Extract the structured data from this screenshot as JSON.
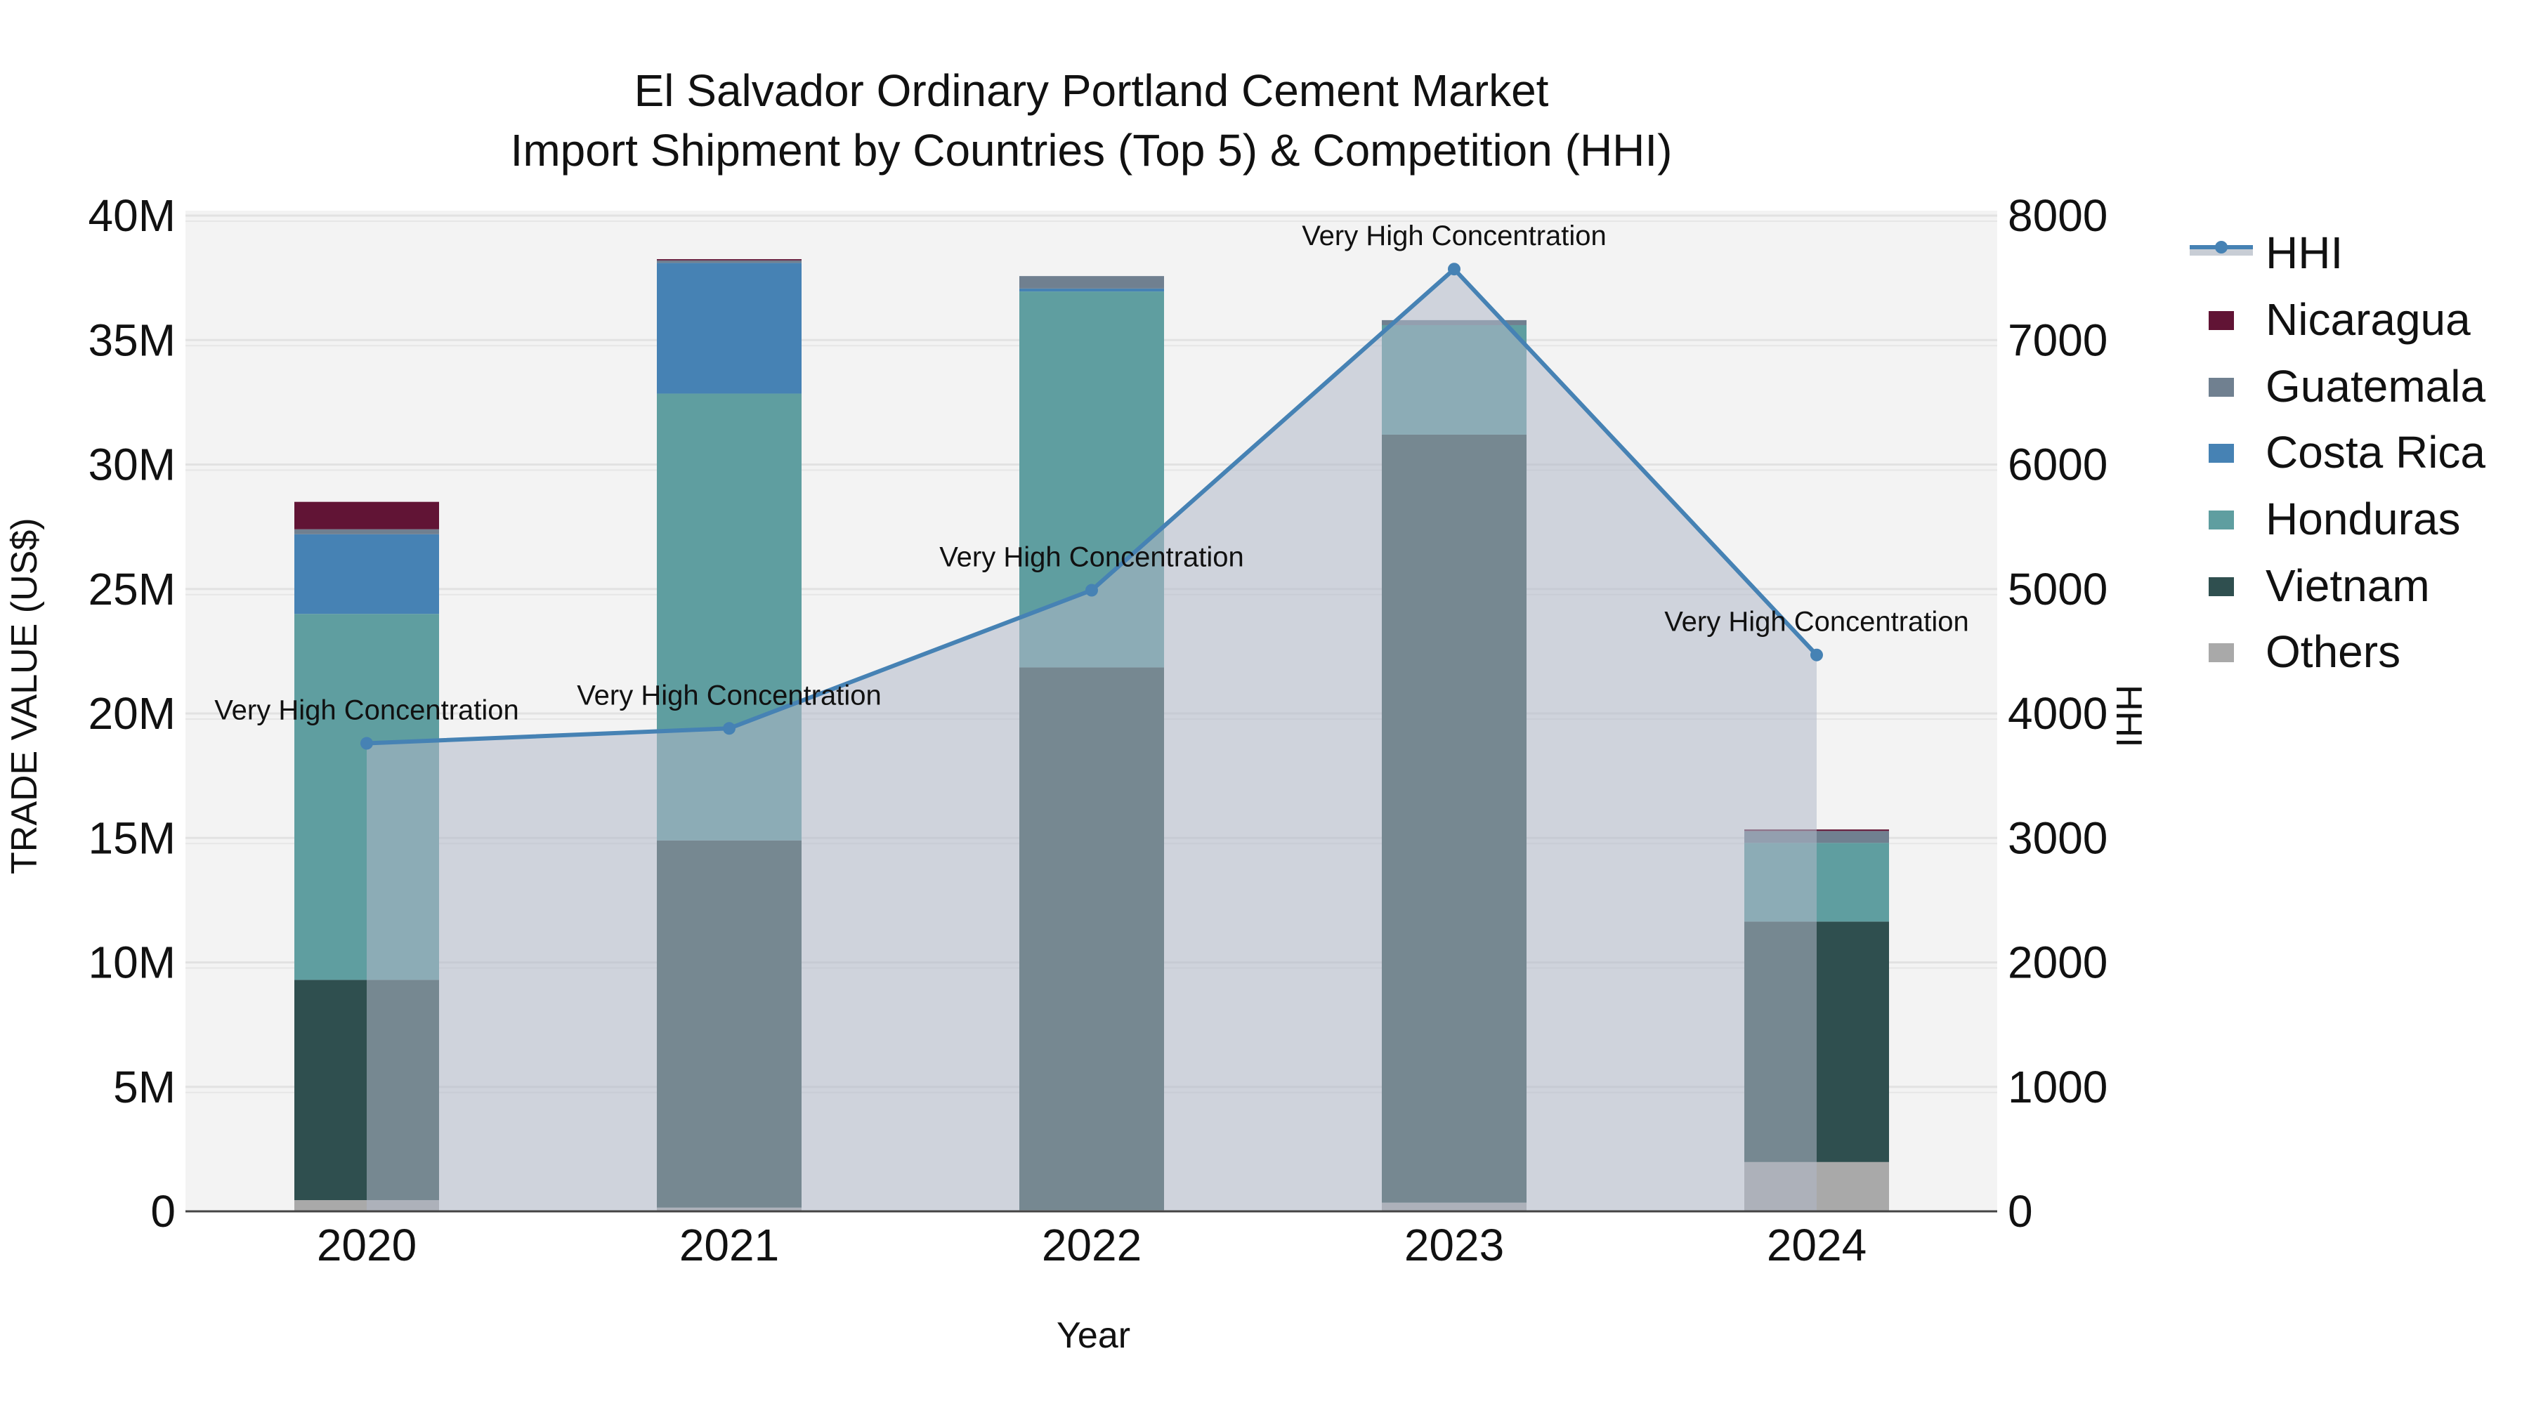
{
  "title": {
    "line1": "El Salvador Ordinary Portland Cement Market",
    "line2": "Import Shipment by Countries (Top 5) & Competition (HHI)"
  },
  "axes": {
    "x_title": "Year",
    "y_left_title": "TRADE VALUE (US$)",
    "y_right_title": "HHI",
    "y_left_ticks": [
      "0",
      "5M",
      "10M",
      "15M",
      "20M",
      "25M",
      "30M",
      "35M",
      "40M"
    ],
    "y_right_ticks": [
      "0",
      "1000",
      "2000",
      "3000",
      "4000",
      "5000",
      "6000",
      "7000",
      "8000"
    ]
  },
  "legend": {
    "items": [
      {
        "label": "HHI",
        "type": "line",
        "color": "#4682b4"
      },
      {
        "label": "Nicaragua",
        "type": "bar",
        "color": "#611435"
      },
      {
        "label": "Guatemala",
        "type": "bar",
        "color": "#708090"
      },
      {
        "label": "Costa Rica",
        "type": "bar",
        "color": "#4682b4"
      },
      {
        "label": "Honduras",
        "type": "bar",
        "color": "#5f9ea0"
      },
      {
        "label": "Vietnam",
        "type": "bar",
        "color": "#2f4f4f"
      },
      {
        "label": "Others",
        "type": "bar",
        "color": "#a9a9a9"
      }
    ]
  },
  "chart_data": {
    "type": "bar",
    "stacked": true,
    "title": "El Salvador Ordinary Portland Cement Market — Import Shipment by Countries (Top 5) & Competition (HHI)",
    "xlabel": "Year",
    "ylabel": "TRADE VALUE (US$)",
    "y2label": "HHI",
    "categories": [
      "2020",
      "2021",
      "2022",
      "2023",
      "2024"
    ],
    "ylim": [
      0,
      40000000
    ],
    "y2lim": [
      0,
      8000
    ],
    "grid": true,
    "legend_position": "right",
    "series": [
      {
        "name": "Others",
        "color": "#a9a9a9",
        "values": [
          450000,
          150000,
          50000,
          350000,
          1980000
        ]
      },
      {
        "name": "Vietnam",
        "color": "#2f4f4f",
        "values": [
          8850000,
          14750000,
          21800000,
          30850000,
          9660000
        ]
      },
      {
        "name": "Honduras",
        "color": "#5f9ea0",
        "values": [
          14700000,
          17950000,
          15100000,
          4400000,
          3160000
        ]
      },
      {
        "name": "Costa Rica",
        "color": "#4682b4",
        "values": [
          3200000,
          5250000,
          120000,
          0,
          0
        ]
      },
      {
        "name": "Guatemala",
        "color": "#708090",
        "values": [
          200000,
          100000,
          500000,
          200000,
          480000
        ]
      },
      {
        "name": "Nicaragua",
        "color": "#611435",
        "values": [
          1100000,
          50000,
          0,
          0,
          60000
        ]
      }
    ],
    "line_series": {
      "name": "HHI",
      "axis": "right",
      "color": "#4682b4",
      "fill": "tozeroy",
      "values": [
        3760,
        3880,
        4990,
        7570,
        4470
      ],
      "annotations": [
        "Very High Concentration",
        "Very High Concentration",
        "Very High Concentration",
        "Very High Concentration",
        "Very High Concentration"
      ]
    }
  }
}
